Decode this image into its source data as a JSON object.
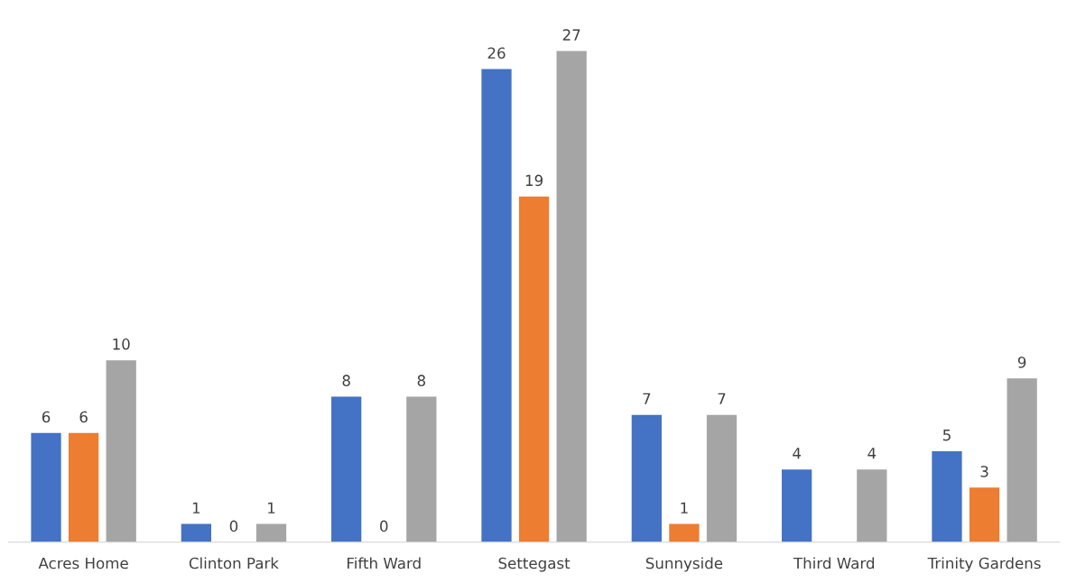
{
  "chart_data": {
    "type": "bar",
    "categories": [
      "Acres Home",
      "Clinton Park",
      "Fifth Ward",
      "Settegast",
      "Sunnyside",
      "Third Ward",
      "Trinity Gardens"
    ],
    "series": [
      {
        "color": "#4472c4",
        "values": [
          6,
          1,
          8,
          26,
          7,
          4,
          5
        ]
      },
      {
        "color": "#ed7d31",
        "values": [
          6,
          0,
          0,
          19,
          1,
          null,
          3
        ]
      },
      {
        "color": "#a5a5a5",
        "values": [
          10,
          1,
          8,
          27,
          7,
          4,
          9
        ]
      }
    ],
    "data_labels": true,
    "grid": false,
    "legend": false
  }
}
